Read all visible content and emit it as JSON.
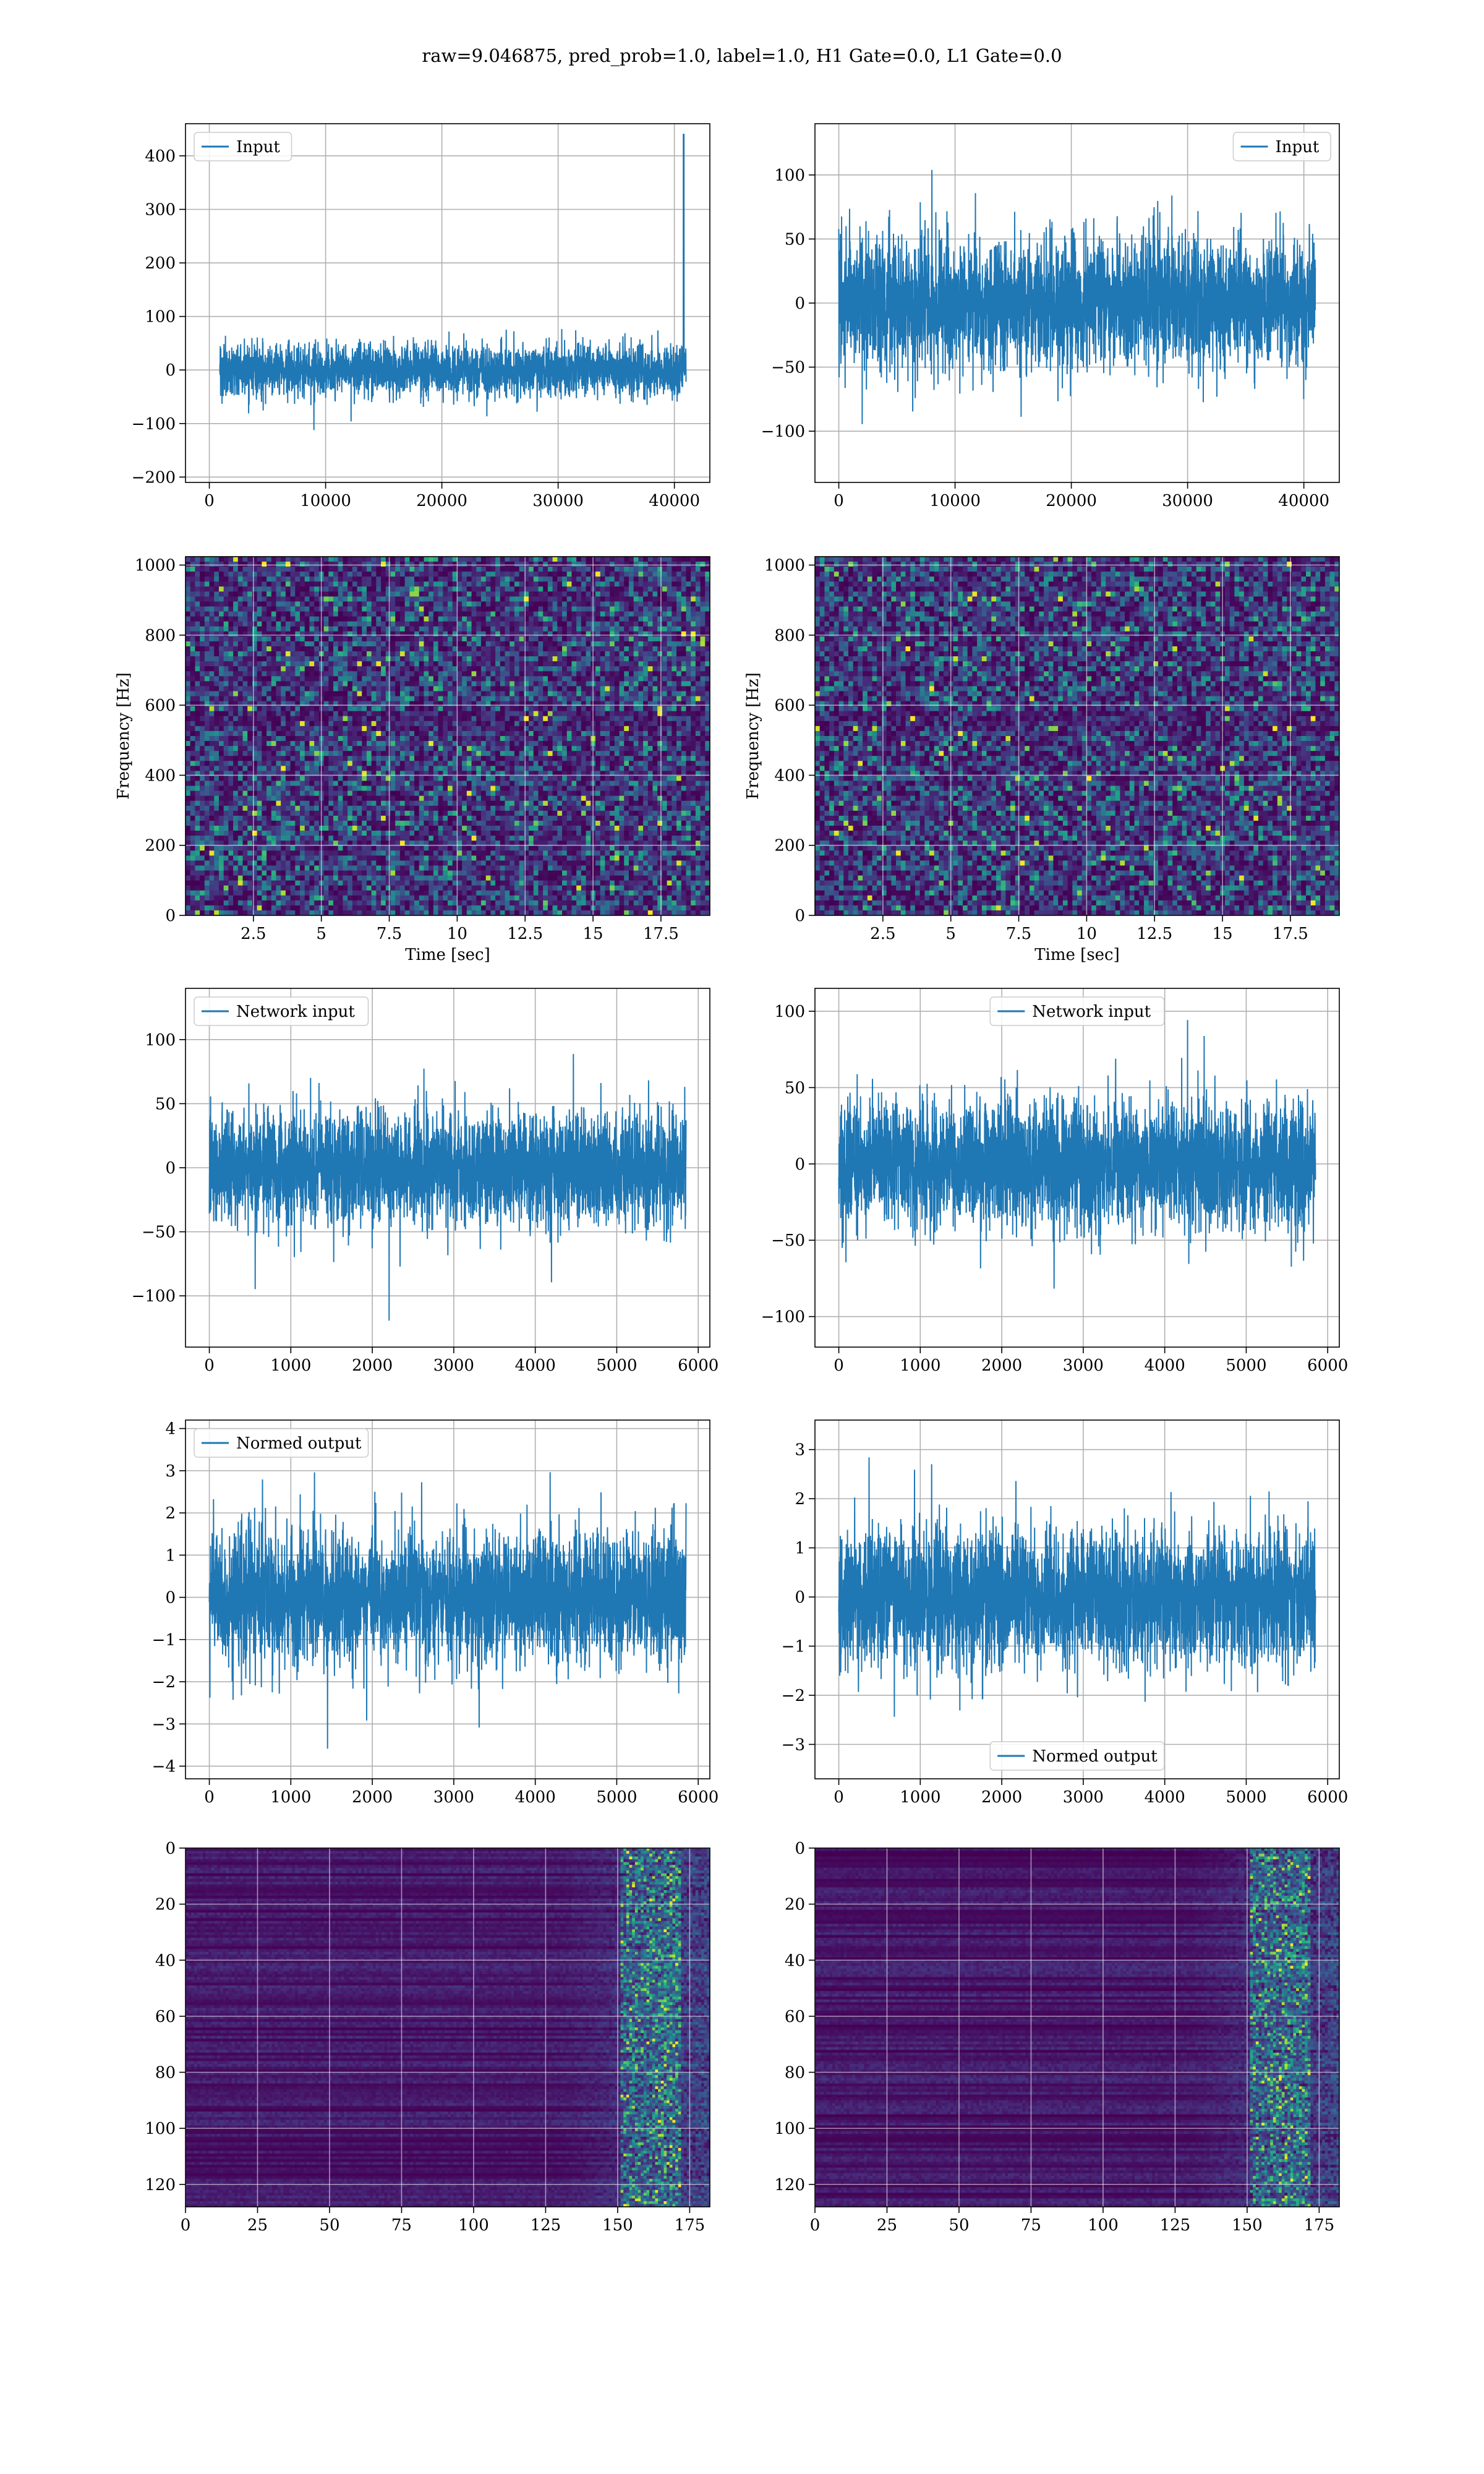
{
  "figure": {
    "suptitle": "raw=9.046875, pred_prob=1.0, label=1.0, H1 Gate=0.0, L1 Gate=0.0",
    "line_color": "#1f77b4"
  },
  "chart_data": [
    {
      "type": "line",
      "row": 1,
      "col": 1,
      "series": [
        {
          "name": "Input",
          "values": "dense noise, amplitude ~±80 with peaks to ~±140; single spike to ~440 near x=41000"
        }
      ],
      "x_range": [
        0,
        41000
      ],
      "ylim": [
        -210,
        460
      ],
      "xticks": [
        0,
        10000,
        20000,
        30000,
        40000
      ],
      "yticks": [
        -200,
        -100,
        0,
        100,
        200,
        300,
        400
      ],
      "legend": "upper left",
      "grid": true
    },
    {
      "type": "line",
      "row": 1,
      "col": 2,
      "series": [
        {
          "name": "Input",
          "values": "dense noise, amplitude ~±50 with peaks to ~±125"
        }
      ],
      "x_range": [
        0,
        41000
      ],
      "ylim": [
        -140,
        140
      ],
      "xticks": [
        0,
        10000,
        20000,
        30000,
        40000
      ],
      "yticks": [
        -100,
        -50,
        0,
        50,
        100
      ],
      "legend": "upper right",
      "grid": true
    },
    {
      "type": "heatmap",
      "row": 2,
      "col": 1,
      "xlabel": "Time [sec]",
      "ylabel": "Frequency [Hz]",
      "xlim": [
        0,
        19.3
      ],
      "ylim": [
        0,
        1024
      ],
      "xticks": [
        2.5,
        5.0,
        7.5,
        10.0,
        12.5,
        15.0,
        17.5
      ],
      "yticks": [
        0,
        200,
        400,
        600,
        800,
        1000
      ],
      "colormap": "viridis",
      "grid": true
    },
    {
      "type": "heatmap",
      "row": 2,
      "col": 2,
      "xlabel": "Time [sec]",
      "ylabel": "Frequency [Hz]",
      "xlim": [
        0,
        19.3
      ],
      "ylim": [
        0,
        1024
      ],
      "xticks": [
        2.5,
        5.0,
        7.5,
        10.0,
        12.5,
        15.0,
        17.5
      ],
      "yticks": [
        0,
        200,
        400,
        600,
        800,
        1000
      ],
      "colormap": "viridis",
      "grid": true
    },
    {
      "type": "line",
      "row": 3,
      "col": 1,
      "series": [
        {
          "name": "Network input",
          "values": "dense noise, amplitude ~±45 with peaks to ~±125"
        }
      ],
      "x_range": [
        0,
        5850
      ],
      "ylim": [
        -140,
        140
      ],
      "xticks": [
        0,
        1000,
        2000,
        3000,
        4000,
        5000,
        6000
      ],
      "yticks": [
        -100,
        -50,
        0,
        50,
        100
      ],
      "legend": "upper left",
      "grid": true
    },
    {
      "type": "line",
      "row": 3,
      "col": 2,
      "series": [
        {
          "name": "Network input",
          "values": "dense noise, amplitude ~±40 with peaks to ~±105"
        }
      ],
      "x_range": [
        0,
        5850
      ],
      "ylim": [
        -120,
        115
      ],
      "xticks": [
        0,
        1000,
        2000,
        3000,
        4000,
        5000,
        6000
      ],
      "yticks": [
        -100,
        -50,
        0,
        50,
        100
      ],
      "legend": "upper center",
      "grid": true
    },
    {
      "type": "line",
      "row": 4,
      "col": 1,
      "series": [
        {
          "name": "Normed output",
          "values": "dense noise, amplitude ~±1.4 with peaks to ~±3.9"
        }
      ],
      "x_range": [
        0,
        5850
      ],
      "ylim": [
        -4.3,
        4.2
      ],
      "xticks": [
        0,
        1000,
        2000,
        3000,
        4000,
        5000,
        6000
      ],
      "yticks": [
        -4,
        -3,
        -2,
        -1,
        0,
        1,
        2,
        3,
        4
      ],
      "legend": "upper left",
      "grid": true
    },
    {
      "type": "line",
      "row": 4,
      "col": 2,
      "series": [
        {
          "name": "Normed output",
          "values": "dense noise, amplitude ~±1.2 with peaks to ~±3.3"
        }
      ],
      "x_range": [
        0,
        5850
      ],
      "ylim": [
        -3.7,
        3.6
      ],
      "xticks": [
        0,
        1000,
        2000,
        3000,
        4000,
        5000,
        6000
      ],
      "yticks": [
        -3,
        -2,
        -1,
        0,
        1,
        2,
        3
      ],
      "legend": "lower center",
      "grid": true
    },
    {
      "type": "heatmap",
      "row": 5,
      "col": 1,
      "xlim": [
        0,
        182
      ],
      "ylim": [
        128,
        0
      ],
      "xticks": [
        0,
        25,
        50,
        75,
        100,
        125,
        150,
        175
      ],
      "yticks": [
        0,
        20,
        40,
        60,
        80,
        100,
        120
      ],
      "colormap": "viridis",
      "grid": true
    },
    {
      "type": "heatmap",
      "row": 5,
      "col": 2,
      "xlim": [
        0,
        182
      ],
      "ylim": [
        128,
        0
      ],
      "xticks": [
        0,
        25,
        50,
        75,
        100,
        125,
        150,
        175
      ],
      "yticks": [
        0,
        20,
        40,
        60,
        80,
        100,
        120
      ],
      "colormap": "viridis",
      "grid": true
    }
  ]
}
